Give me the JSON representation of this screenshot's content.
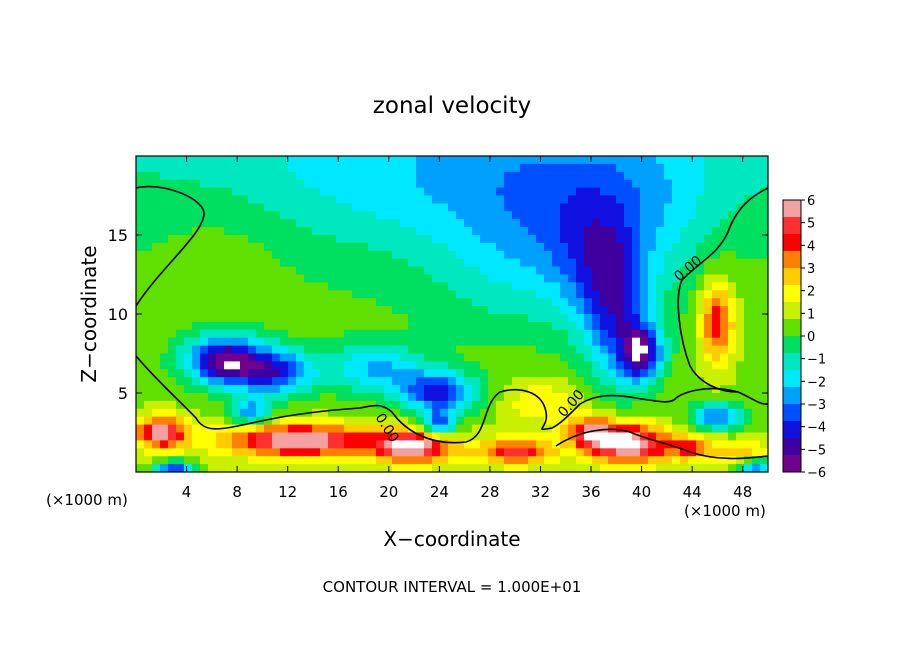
{
  "chart_data": {
    "type": "heatmap",
    "title": "zonal velocity",
    "xlabel": "X−coordinate",
    "ylabel": "Z−coordinate",
    "x_unit_left": "(×1000 m)",
    "x_unit_right": "(×1000 m)",
    "footer": "CONTOUR INTERVAL = 1.000E+01",
    "contour_label": "0.00",
    "xlim": [
      0,
      50
    ],
    "ylim": [
      0,
      20
    ],
    "x_ticks": [
      4,
      8,
      12,
      16,
      20,
      24,
      28,
      32,
      36,
      40,
      44,
      48
    ],
    "y_ticks": [
      5,
      10,
      15
    ],
    "colorbar": {
      "range": [
        -6,
        6
      ],
      "ticks": [
        6,
        5,
        4,
        3,
        2,
        1,
        0,
        -1,
        -2,
        -3,
        -4,
        -5,
        -6
      ],
      "tick_labels": [
        "6",
        "5",
        "4",
        "3",
        "2",
        "1",
        "0",
        "−1",
        "−2",
        "−3",
        "−4",
        "−5",
        "−6"
      ],
      "colors": [
        "#f3a0a0",
        "#ff3030",
        "#ff0000",
        "#ff8000",
        "#ffcc00",
        "#ffff00",
        "#c8f000",
        "#60e000",
        "#00e060",
        "#00e8c0",
        "#00e8ff",
        "#00a0ff",
        "#0050ff",
        "#1010e0",
        "#4000a0",
        "#700090"
      ]
    },
    "blobs": [
      {
        "x": 25,
        "y": 19,
        "sx": 22,
        "sy": 5,
        "v": -1.8
      },
      {
        "x": 36,
        "y": 16,
        "sx": 10,
        "sy": 5,
        "v": -2.0
      },
      {
        "x": 30,
        "y": 12,
        "sx": 7,
        "sy": 4,
        "v": -0.8
      },
      {
        "x": 7,
        "y": 15,
        "sx": 6,
        "sy": 4,
        "v": 0.6
      },
      {
        "x": 47,
        "y": 15,
        "sx": 4,
        "sy": 4,
        "v": 0.6
      },
      {
        "x": 38,
        "y": 10,
        "sx": 2.5,
        "sy": 4.5,
        "v": -3.5
      },
      {
        "x": 40,
        "y": 7.5,
        "sx": 1.6,
        "sy": 1.8,
        "v": -5.2
      },
      {
        "x": 36,
        "y": 13,
        "sx": 3,
        "sy": 4,
        "v": -1.5
      },
      {
        "x": 7,
        "y": 7,
        "sx": 3,
        "sy": 1.5,
        "v": -6.0
      },
      {
        "x": 11,
        "y": 6.3,
        "sx": 3,
        "sy": 1.5,
        "v": -4.2
      },
      {
        "x": 19,
        "y": 6.5,
        "sx": 4,
        "sy": 1.6,
        "v": -2.8
      },
      {
        "x": 24,
        "y": 5.0,
        "sx": 3,
        "sy": 1.3,
        "v": -4.6
      },
      {
        "x": 24,
        "y": 3,
        "sx": 1.2,
        "sy": 0.9,
        "v": -4.0
      },
      {
        "x": 9,
        "y": 3.8,
        "sx": 1.5,
        "sy": 0.8,
        "v": -3.5
      },
      {
        "x": 46,
        "y": 9.5,
        "sx": 1.4,
        "sy": 2.6,
        "v": 4.0
      },
      {
        "x": 46,
        "y": 3.5,
        "sx": 2,
        "sy": 0.8,
        "v": -4.0
      },
      {
        "x": 32,
        "y": 4.5,
        "sx": 3,
        "sy": 1.5,
        "v": 1.6
      },
      {
        "x": 2,
        "y": 2.5,
        "sx": 2,
        "sy": 1.0,
        "v": 5.0
      },
      {
        "x": 13,
        "y": 2.0,
        "sx": 6,
        "sy": 1.0,
        "v": 5.5
      },
      {
        "x": 22,
        "y": 1.6,
        "sx": 3,
        "sy": 1.0,
        "v": 5.5
      },
      {
        "x": 30,
        "y": 1.3,
        "sx": 3,
        "sy": 0.8,
        "v": 4.0
      },
      {
        "x": 39,
        "y": 1.8,
        "sx": 3,
        "sy": 1.2,
        "v": 6.0
      },
      {
        "x": 36,
        "y": 2.5,
        "sx": 2,
        "sy": 1.0,
        "v": 4.0
      },
      {
        "x": 44,
        "y": 1.5,
        "sx": 2,
        "sy": 0.8,
        "v": 3.0
      },
      {
        "x": 48,
        "y": 1.2,
        "sx": 2,
        "sy": 0.7,
        "v": 2.0
      },
      {
        "x": 3,
        "y": 0.3,
        "sx": 1.5,
        "sy": 0.4,
        "v": -4.5
      },
      {
        "x": 49,
        "y": 0.4,
        "sx": 1.5,
        "sy": 0.4,
        "v": -4.0
      }
    ]
  }
}
